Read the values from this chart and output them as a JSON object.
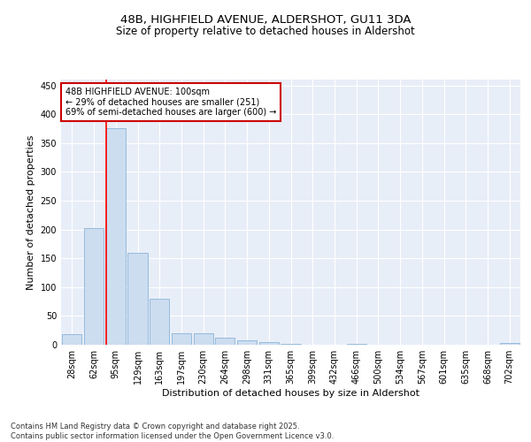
{
  "title_line1": "48B, HIGHFIELD AVENUE, ALDERSHOT, GU11 3DA",
  "title_line2": "Size of property relative to detached houses in Aldershot",
  "xlabel": "Distribution of detached houses by size in Aldershot",
  "ylabel": "Number of detached properties",
  "categories": [
    "28sqm",
    "62sqm",
    "95sqm",
    "129sqm",
    "163sqm",
    "197sqm",
    "230sqm",
    "264sqm",
    "298sqm",
    "331sqm",
    "365sqm",
    "399sqm",
    "432sqm",
    "466sqm",
    "500sqm",
    "534sqm",
    "567sqm",
    "601sqm",
    "635sqm",
    "668sqm",
    "702sqm"
  ],
  "values": [
    18,
    202,
    375,
    160,
    80,
    20,
    20,
    13,
    7,
    4,
    1,
    0,
    0,
    1,
    0,
    0,
    0,
    0,
    0,
    0,
    3
  ],
  "bar_color": "#ccddf0",
  "bar_edge_color": "#8ab4d8",
  "red_line_x": 2.0,
  "annotation_box_text": "48B HIGHFIELD AVENUE: 100sqm\n← 29% of detached houses are smaller (251)\n69% of semi-detached houses are larger (600) →",
  "annotation_box_color": "#ffffff",
  "annotation_box_edge_color": "#cc0000",
  "ylim": [
    0,
    460
  ],
  "yticks": [
    0,
    50,
    100,
    150,
    200,
    250,
    300,
    350,
    400,
    450
  ],
  "background_color": "#e8eef8",
  "grid_color": "#ffffff",
  "footer_text": "Contains HM Land Registry data © Crown copyright and database right 2025.\nContains public sector information licensed under the Open Government Licence v3.0.",
  "title_fontsize": 9.5,
  "subtitle_fontsize": 8.5,
  "axis_label_fontsize": 8,
  "tick_fontsize": 7,
  "annotation_fontsize": 7,
  "footer_fontsize": 6
}
